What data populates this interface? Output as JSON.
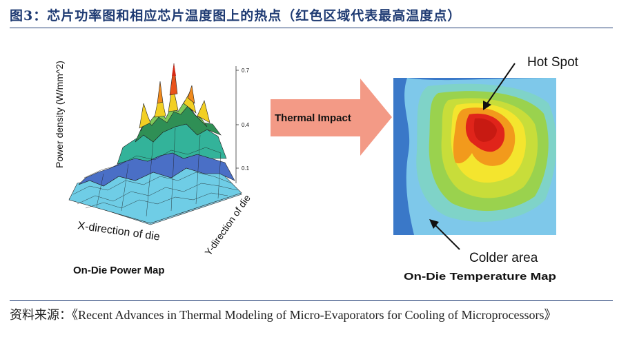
{
  "figure": {
    "title": "图3：芯片功率图和相应芯片温度图上的热点（红色区域代表最高温度点）",
    "source": "资料来源：《Recent Advances in Thermal Modeling of Micro-Evaporators for Cooling of Microprocessors》"
  },
  "power_map": {
    "caption": "On-Die Power Map",
    "z_axis_label": "Power density (W/mm^2)",
    "x_axis_label": "X-direction of die",
    "y_axis_label": "Y-direction of die",
    "z_ticks": [
      "0.7",
      "0.4",
      "0.1"
    ]
  },
  "arrow": {
    "label": "Thermal Impact"
  },
  "temperature_map": {
    "caption": "On-Die Temperature Map",
    "hot_spot_label": "Hot Spot",
    "colder_area_label": "Colder area"
  },
  "colors": {
    "title": "#1f3b73",
    "arrow_fill": "#f39a86",
    "hot_red": "#e0241a",
    "cold_blue": "#3a78c8"
  }
}
